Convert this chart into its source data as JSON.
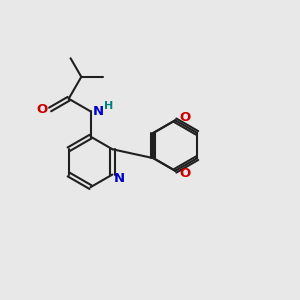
{
  "bg_color": "#e8e8e8",
  "bond_color": "#202020",
  "n_color": "#0000cc",
  "o_color": "#cc0000",
  "h_color": "#008080",
  "lw": 1.5,
  "fs": 9.5,
  "dg": 0.07,
  "xlim": [
    0,
    10
  ],
  "ylim": [
    0,
    10
  ]
}
